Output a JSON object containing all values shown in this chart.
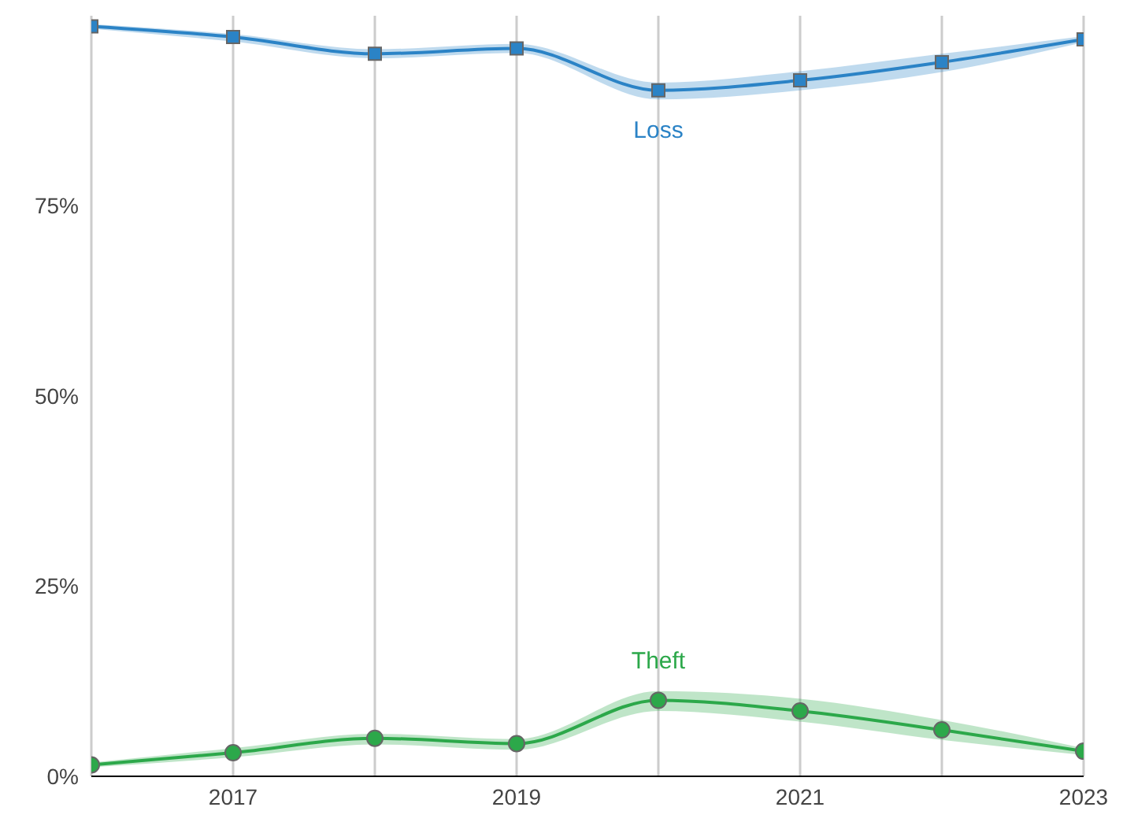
{
  "chart_data": {
    "type": "line",
    "x": [
      2016,
      2017,
      2018,
      2019,
      2020,
      2021,
      2022,
      2023
    ],
    "series": [
      {
        "name": "Loss",
        "color": "#2b83c6",
        "marker": "square",
        "values": [
          98.6,
          97.2,
          95,
          95.7,
          90.2,
          91.5,
          93.9,
          96.9
        ],
        "lower": [
          98.3,
          96.6,
          94.4,
          95.1,
          89,
          90.2,
          92.6,
          96.5
        ],
        "upper": [
          98.9,
          97.6,
          95.6,
          96.3,
          91.2,
          92.7,
          95,
          97.3
        ]
      },
      {
        "name": "Theft",
        "color": "#2ca84a",
        "marker": "circle",
        "values": [
          1.5,
          3.1,
          5,
          4.3,
          10,
          8.6,
          6.1,
          3.3
        ],
        "lower": [
          1.2,
          2.5,
          4.2,
          3.5,
          8.6,
          7.2,
          4.8,
          2.8
        ],
        "upper": [
          1.8,
          3.7,
          5.6,
          4.9,
          11.2,
          10.2,
          7.4,
          3.7
        ]
      }
    ],
    "xlim": [
      2016,
      2023
    ],
    "xticks": [
      {
        "value": 2016,
        "label": null
      },
      2017,
      {
        "value": 2018,
        "label": null
      },
      2019,
      {
        "value": 2020,
        "label": null
      },
      2021,
      {
        "value": 2022,
        "label": null
      },
      2023
    ],
    "ylim": [
      0,
      100
    ],
    "yticks": [
      {
        "value": 0,
        "label": "0%"
      },
      {
        "value": 25,
        "label": "25%"
      },
      {
        "value": 50,
        "label": "50%"
      },
      {
        "value": 75,
        "label": "75%"
      }
    ],
    "grid": "x",
    "line_style": "solid"
  }
}
